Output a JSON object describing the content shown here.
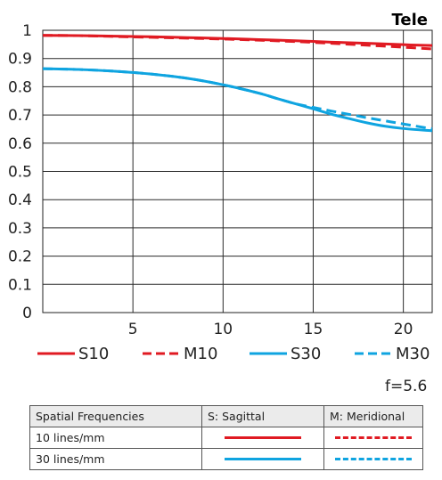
{
  "chart_data": {
    "type": "line",
    "title": "Tele",
    "xlabel": "",
    "ylabel": "",
    "xlim": [
      0,
      21.6
    ],
    "ylim": [
      0,
      1
    ],
    "xticks": [
      5,
      10,
      15,
      20
    ],
    "yticks": [
      0,
      0.1,
      0.2,
      0.3,
      0.4,
      0.5,
      0.6,
      0.7,
      0.8,
      0.9,
      1
    ],
    "ytick_labels": [
      "0",
      "0.1",
      "0.2",
      "0.3",
      "0.4",
      "0.5",
      "0.6",
      "0.7",
      "0.8",
      "0.9",
      "1"
    ],
    "xtick_labels": [
      "5",
      "10",
      "15",
      "20"
    ],
    "grid": true,
    "legend_position": "bottom",
    "series": [
      {
        "name": "S10",
        "color": "#e01a22",
        "style": "solid",
        "x": [
          0,
          2,
          4,
          6,
          8,
          10,
          12,
          14,
          16,
          18,
          20,
          21.6
        ],
        "y": [
          0.982,
          0.981,
          0.979,
          0.977,
          0.974,
          0.971,
          0.967,
          0.963,
          0.958,
          0.954,
          0.949,
          0.946
        ]
      },
      {
        "name": "M10",
        "color": "#e01a22",
        "style": "dashed",
        "x": [
          0,
          2,
          4,
          6,
          8,
          10,
          12,
          14,
          16,
          18,
          20,
          21.6
        ],
        "y": [
          0.982,
          0.981,
          0.978,
          0.975,
          0.972,
          0.969,
          0.965,
          0.96,
          0.954,
          0.947,
          0.94,
          0.934
        ]
      },
      {
        "name": "S30",
        "color": "#0fa4e0",
        "style": "solid",
        "x": [
          0,
          2,
          4,
          6,
          8,
          10,
          12,
          13,
          14,
          15,
          16,
          17,
          18,
          19,
          20,
          21.6
        ],
        "y": [
          0.864,
          0.861,
          0.855,
          0.845,
          0.83,
          0.807,
          0.777,
          0.758,
          0.74,
          0.722,
          0.703,
          0.687,
          0.672,
          0.66,
          0.652,
          0.644
        ]
      },
      {
        "name": "M30",
        "color": "#0fa4e0",
        "style": "dashed",
        "x": [
          0,
          2,
          4,
          6,
          8,
          10,
          12,
          13,
          14,
          15,
          16,
          17,
          18,
          19,
          20,
          21.6
        ],
        "y": [
          0.864,
          0.861,
          0.855,
          0.845,
          0.83,
          0.807,
          0.777,
          0.758,
          0.74,
          0.727,
          0.714,
          0.702,
          0.69,
          0.679,
          0.668,
          0.651
        ]
      }
    ]
  },
  "aperture": "f=5.6",
  "key_table": {
    "headers": [
      "Spatial Frequencies",
      "S: Sagittal",
      "M: Meridional"
    ],
    "rows": [
      {
        "label": "10 lines/mm"
      },
      {
        "label": "30 lines/mm"
      }
    ]
  }
}
